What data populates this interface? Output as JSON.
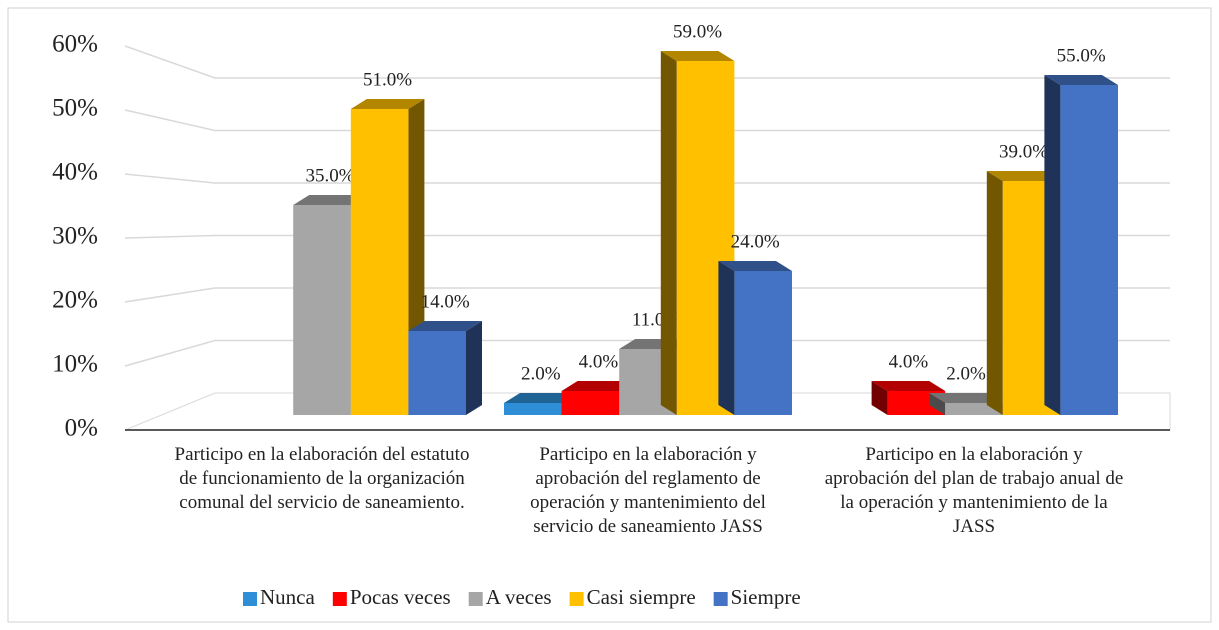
{
  "chart_data": {
    "type": "bar3d",
    "categories": [
      "Participo en la elaboración del estatuto de funcionamiento de la organización comunal del servicio de saneamiento.",
      "Participo en la elaboración y aprobación del reglamento de operación y mantenimiento del servicio de saneamiento JASS",
      "Participo en la elaboración y aprobación del plan de trabajo anual de la operación y mantenimiento de la JASS"
    ],
    "series": [
      {
        "name": "Nunca",
        "color": "#2e8fd6",
        "values": [
          null,
          2,
          null
        ],
        "value_labels": [
          null,
          "2.0%",
          null
        ]
      },
      {
        "name": "Pocas veces",
        "color": "#ff0000",
        "values": [
          null,
          4,
          4
        ],
        "value_labels": [
          null,
          "4.0%",
          "4.0%"
        ]
      },
      {
        "name": "A veces",
        "color": "#a6a6a6",
        "values": [
          35,
          11,
          2
        ],
        "value_labels": [
          "35.0%",
          "11.0%",
          "2.0%"
        ]
      },
      {
        "name": "Casi siempre",
        "color": "#ffc000",
        "values": [
          51,
          59,
          39
        ],
        "value_labels": [
          "51.0%",
          "59.0%",
          "39.0%"
        ]
      },
      {
        "name": "Siempre",
        "color": "#4472c4",
        "values": [
          14,
          24,
          55
        ],
        "value_labels": [
          "14.0%",
          "24.0%",
          "55.0%"
        ]
      }
    ],
    "ylim": [
      0,
      60
    ],
    "yticks": [
      {
        "value": 0,
        "label": "0%"
      },
      {
        "value": 10,
        "label": "10%"
      },
      {
        "value": 20,
        "label": "20%"
      },
      {
        "value": 30,
        "label": "30%"
      },
      {
        "value": 40,
        "label": "40%"
      },
      {
        "value": 50,
        "label": "50%"
      },
      {
        "value": 60,
        "label": "60%"
      }
    ],
    "grid": true,
    "legend": "bottom"
  }
}
